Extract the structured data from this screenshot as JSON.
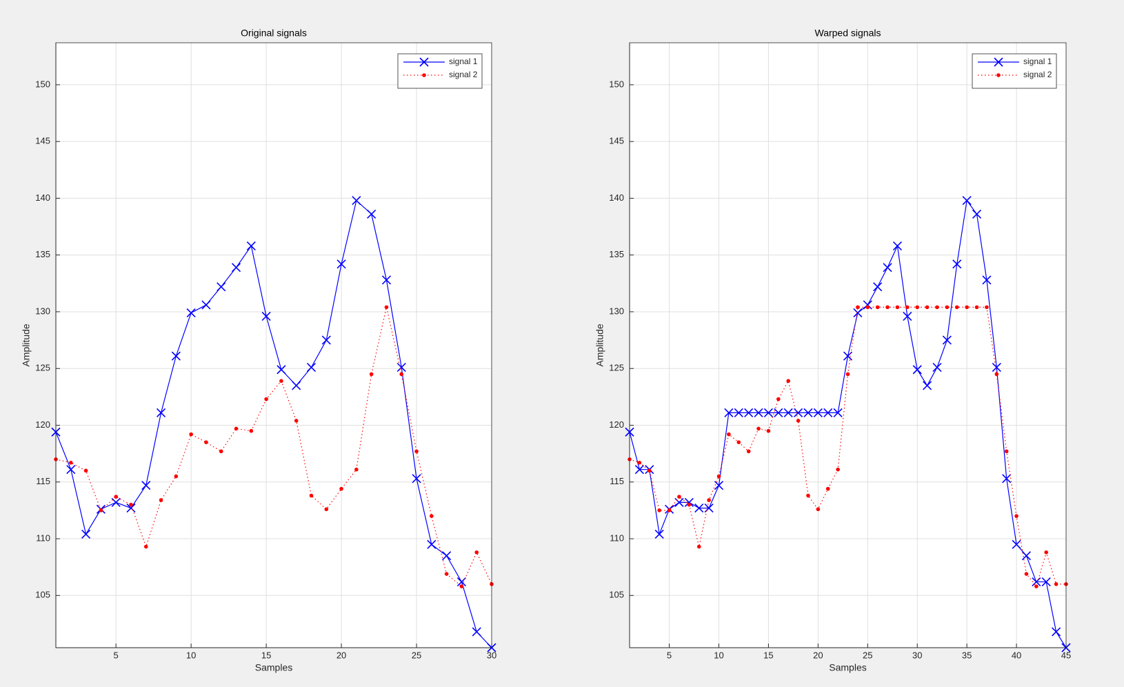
{
  "chart_data": [
    {
      "type": "line",
      "title": "Original signals",
      "xlabel": "Samples",
      "ylabel": "Amplitude",
      "x": [
        1,
        2,
        3,
        4,
        5,
        6,
        7,
        8,
        9,
        10,
        11,
        12,
        13,
        14,
        15,
        16,
        17,
        18,
        19,
        20,
        21,
        22,
        23,
        24,
        25,
        26,
        27,
        28,
        29,
        30
      ],
      "xlim": [
        1,
        30
      ],
      "xticks": [
        5,
        10,
        15,
        20,
        25,
        30
      ],
      "ylim": [
        100.4,
        153.7
      ],
      "yticks": [
        105,
        110,
        115,
        120,
        125,
        130,
        135,
        140,
        145,
        150
      ],
      "grid": true,
      "legend": "northeast",
      "series": [
        {
          "name": "signal 1",
          "color": "#0000ff",
          "linestyle": "solid",
          "marker": "x",
          "values": [
            119.4,
            116.1,
            110.4,
            112.6,
            113.2,
            112.7,
            114.7,
            121.1,
            126.1,
            129.9,
            130.6,
            132.2,
            133.9,
            135.8,
            129.6,
            124.9,
            123.5,
            125.1,
            127.5,
            134.2,
            139.8,
            138.6,
            132.8,
            125.1,
            115.3,
            109.5,
            108.5,
            106.2,
            101.8,
            100.4
          ]
        },
        {
          "name": "signal 2",
          "color": "#ff0000",
          "linestyle": "dotted",
          "marker": "dot",
          "values": [
            117.0,
            116.7,
            116.0,
            112.5,
            113.7,
            113.0,
            109.3,
            113.4,
            115.5,
            119.2,
            118.5,
            117.7,
            119.7,
            119.5,
            122.3,
            123.9,
            120.4,
            113.8,
            112.6,
            114.4,
            116.1,
            124.5,
            130.4,
            124.5,
            117.7,
            112.0,
            106.9,
            105.8,
            108.8,
            106.0
          ]
        }
      ]
    },
    {
      "type": "line",
      "title": "Warped signals",
      "xlabel": "Samples",
      "ylabel": "Amplitude",
      "x": [
        1,
        2,
        3,
        4,
        5,
        6,
        7,
        8,
        9,
        10,
        11,
        12,
        13,
        14,
        15,
        16,
        17,
        18,
        19,
        20,
        21,
        22,
        23,
        24,
        25,
        26,
        27,
        28,
        29,
        30,
        31,
        32,
        33,
        34,
        35,
        36,
        37,
        38,
        39,
        40,
        41,
        42,
        43,
        44,
        45
      ],
      "xlim": [
        1,
        45
      ],
      "xticks": [
        5,
        10,
        15,
        20,
        25,
        30,
        35,
        40,
        45
      ],
      "ylim": [
        100.4,
        153.7
      ],
      "yticks": [
        105,
        110,
        115,
        120,
        125,
        130,
        135,
        140,
        145,
        150
      ],
      "grid": true,
      "legend": "northeast",
      "series": [
        {
          "name": "signal 1",
          "color": "#0000ff",
          "linestyle": "solid",
          "marker": "x",
          "values": [
            119.4,
            116.1,
            116.1,
            110.4,
            112.6,
            113.2,
            113.2,
            112.7,
            112.7,
            114.7,
            121.1,
            121.1,
            121.1,
            121.1,
            121.1,
            121.1,
            121.1,
            121.1,
            121.1,
            121.1,
            121.1,
            121.1,
            126.1,
            129.9,
            130.6,
            132.2,
            133.9,
            135.8,
            129.6,
            124.9,
            123.5,
            125.1,
            127.5,
            134.2,
            139.8,
            138.6,
            132.8,
            125.1,
            115.3,
            109.5,
            108.5,
            106.2,
            106.2,
            101.8,
            100.4
          ]
        },
        {
          "name": "signal 2",
          "color": "#ff0000",
          "linestyle": "dotted",
          "marker": "dot",
          "values": [
            117.0,
            116.7,
            116.0,
            112.5,
            112.5,
            113.7,
            113.0,
            109.3,
            113.4,
            115.5,
            119.2,
            118.5,
            117.7,
            119.7,
            119.5,
            122.3,
            123.9,
            120.4,
            113.8,
            112.6,
            114.4,
            116.1,
            124.5,
            130.4,
            130.4,
            130.4,
            130.4,
            130.4,
            130.4,
            130.4,
            130.4,
            130.4,
            130.4,
            130.4,
            130.4,
            130.4,
            130.4,
            124.5,
            117.7,
            112.0,
            106.9,
            105.8,
            108.8,
            106.0,
            106.0
          ]
        }
      ]
    }
  ]
}
